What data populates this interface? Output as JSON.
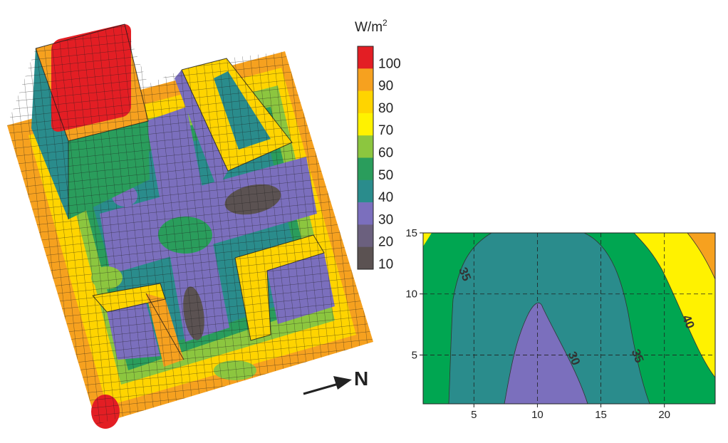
{
  "colorbar": {
    "unit_base": "W/m",
    "unit_exp": "2",
    "tick_labels": [
      "100",
      "90",
      "80",
      "70",
      "60",
      "50",
      "40",
      "30",
      "20",
      "10"
    ],
    "colors": [
      "#e31e24",
      "#f6a11f",
      "#ffd400",
      "#fff200",
      "#8cc63f",
      "#2a9d5c",
      "#2a8c8c",
      "#7b6fbd",
      "#6b607e",
      "#5b5252"
    ]
  },
  "north_label": "N",
  "chart_data": {
    "type": "contour",
    "title": "",
    "xlabel": "",
    "ylabel": "",
    "xlim": [
      1,
      24
    ],
    "ylim": [
      1,
      15
    ],
    "x_ticks": [
      5,
      10,
      15,
      20
    ],
    "y_ticks": [
      5,
      10,
      15
    ],
    "grid": "dashed",
    "levels": [
      30,
      35,
      40
    ],
    "level_labels": [
      {
        "text": "35",
        "x": 4,
        "y": 11.5
      },
      {
        "text": "30",
        "x": 12.6,
        "y": 4.6
      },
      {
        "text": "35",
        "x": 17.6,
        "y": 4.8
      },
      {
        "text": "40",
        "x": 21.6,
        "y": 7.6
      }
    ],
    "fill_colors": {
      "below_30": "#7b6fbd",
      "30_35": "#2a8c8c",
      "35_40": "#00a651",
      "40_45": "#fff200",
      "above_45": "#f6a11f"
    }
  }
}
